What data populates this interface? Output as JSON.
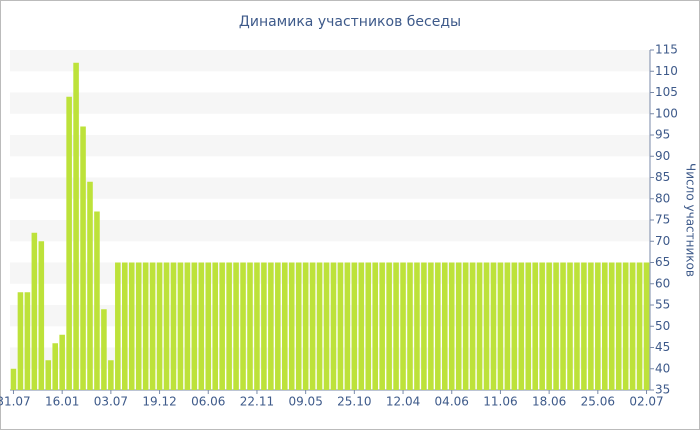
{
  "chart_data": {
    "type": "bar",
    "title": "Динамика участников беседы",
    "y_axis_label": "Число участников",
    "color": "#bde23a",
    "grid": true,
    "categories": [
      "31.07",
      null,
      null,
      null,
      null,
      null,
      null,
      "16.01",
      null,
      null,
      null,
      null,
      null,
      null,
      "03.07",
      null,
      null,
      null,
      null,
      null,
      null,
      "19.12",
      null,
      null,
      null,
      null,
      null,
      null,
      "06.06",
      null,
      null,
      null,
      null,
      null,
      null,
      "22.11",
      null,
      null,
      null,
      null,
      null,
      null,
      "09.05",
      null,
      null,
      null,
      null,
      null,
      null,
      "25.10",
      null,
      null,
      null,
      null,
      null,
      null,
      "12.04",
      null,
      null,
      null,
      null,
      null,
      null,
      "04.06",
      null,
      null,
      null,
      null,
      null,
      null,
      "11.06",
      null,
      null,
      null,
      null,
      null,
      null,
      "18.06",
      null,
      null,
      null,
      null,
      null,
      null,
      "25.06",
      null,
      null,
      null,
      null,
      null,
      null,
      "02.07"
    ],
    "values": [
      40,
      58,
      58,
      72,
      70,
      42,
      46,
      48,
      104,
      112,
      97,
      84,
      77,
      54,
      42,
      65,
      65,
      65,
      65,
      65,
      65,
      65,
      65,
      65,
      65,
      65,
      65,
      65,
      65,
      65,
      65,
      65,
      65,
      65,
      65,
      65,
      65,
      65,
      65,
      65,
      65,
      65,
      65,
      65,
      65,
      65,
      65,
      65,
      65,
      65,
      65,
      65,
      65,
      65,
      65,
      65,
      65,
      65,
      65,
      65,
      65,
      65,
      65,
      65,
      65,
      65,
      65,
      65,
      65,
      65,
      65,
      65,
      65,
      65,
      65,
      65,
      65,
      65,
      65,
      65,
      65,
      65,
      65,
      65,
      65,
      65,
      65,
      65,
      65,
      65,
      65,
      65
    ],
    "ylim": [
      35,
      115
    ],
    "yticks": [
      35,
      40,
      45,
      50,
      55,
      60,
      65,
      70,
      75,
      80,
      85,
      90,
      95,
      100,
      105,
      110,
      115
    ]
  }
}
